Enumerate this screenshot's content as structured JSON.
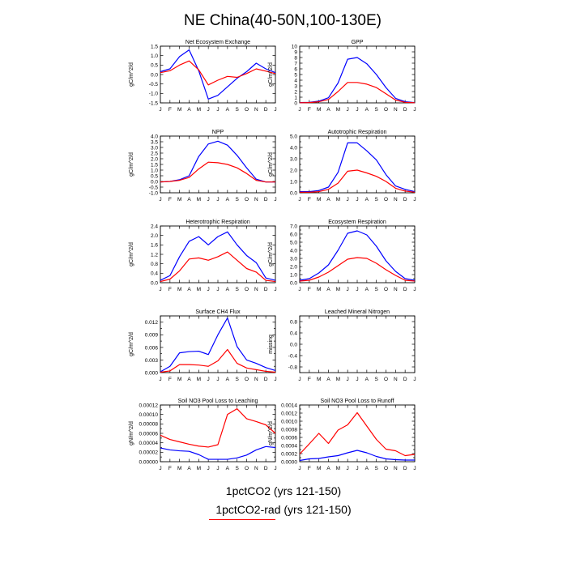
{
  "figure": {
    "title": "NE China(40-50N,100-130E)",
    "legend": [
      {
        "label": "1pctCO2 (yrs 121-150)",
        "color": "#0000ff"
      },
      {
        "label": "1pctCO2-rad (yrs 121-150)",
        "color": "#ff0000"
      }
    ]
  },
  "chart_data": [
    {
      "type": "line",
      "title": "Net Ecosystem Exchange",
      "ylabel": "gC/m^2/d",
      "categories": [
        "J",
        "F",
        "M",
        "A",
        "M",
        "J",
        "J",
        "A",
        "S",
        "O",
        "N",
        "D",
        "J"
      ],
      "ylim": [
        -1.5,
        1.5
      ],
      "yticks": [
        -1.5,
        -1.0,
        -0.5,
        0.0,
        0.5,
        1.0,
        1.5
      ],
      "ytick_labels": [
        "-1.5",
        "-1.0",
        "-0.5",
        "0.0",
        "0.5",
        "1.0",
        "1.5"
      ],
      "series": [
        {
          "color": "#0000ff",
          "values": [
            0.15,
            0.3,
            0.95,
            1.3,
            0.2,
            -1.3,
            -1.1,
            -0.65,
            -0.2,
            0.15,
            0.6,
            0.3,
            0.1
          ]
        },
        {
          "color": "#ff0000",
          "values": [
            0.1,
            0.2,
            0.5,
            0.72,
            0.25,
            -0.55,
            -0.3,
            -0.1,
            -0.15,
            0.05,
            0.3,
            0.18,
            0.05
          ]
        }
      ]
    },
    {
      "type": "line",
      "title": "GPP",
      "ylabel": "gC/m^2/d",
      "categories": [
        "J",
        "F",
        "M",
        "A",
        "M",
        "J",
        "J",
        "A",
        "S",
        "O",
        "N",
        "D",
        "J"
      ],
      "ylim": [
        0,
        10
      ],
      "yticks": [
        0,
        1,
        2,
        3,
        4,
        5,
        6,
        7,
        8,
        9,
        10
      ],
      "ytick_labels": [
        "0",
        "1",
        "2",
        "3",
        "4",
        "5",
        "6",
        "7",
        "8",
        "9",
        "10"
      ],
      "series": [
        {
          "color": "#0000ff",
          "values": [
            0.05,
            0.1,
            0.3,
            0.9,
            3.5,
            7.7,
            8.0,
            6.9,
            5.0,
            2.7,
            0.8,
            0.2,
            0.05
          ]
        },
        {
          "color": "#ff0000",
          "values": [
            0.03,
            0.05,
            0.2,
            0.6,
            2.0,
            3.6,
            3.6,
            3.3,
            2.7,
            1.6,
            0.5,
            0.1,
            0.03
          ]
        }
      ]
    },
    {
      "type": "line",
      "title": "NPP",
      "ylabel": "gC/m^2/d",
      "categories": [
        "J",
        "F",
        "M",
        "A",
        "M",
        "J",
        "J",
        "A",
        "S",
        "O",
        "N",
        "D",
        "J"
      ],
      "ylim": [
        -1.0,
        4.0
      ],
      "yticks": [
        -1.0,
        -0.5,
        0.0,
        0.5,
        1.0,
        1.5,
        2.0,
        2.5,
        3.0,
        3.5,
        4.0
      ],
      "ytick_labels": [
        "-1.0",
        "-0.5",
        "0.0",
        "0.5",
        "1.0",
        "1.5",
        "2.0",
        "2.5",
        "3.0",
        "3.5",
        "4.0"
      ],
      "series": [
        {
          "color": "#0000ff",
          "values": [
            -0.05,
            0.0,
            0.15,
            0.5,
            2.2,
            3.3,
            3.55,
            3.2,
            2.3,
            1.2,
            0.2,
            -0.05,
            -0.05
          ]
        },
        {
          "color": "#ff0000",
          "values": [
            -0.05,
            0.0,
            0.1,
            0.35,
            1.1,
            1.7,
            1.65,
            1.5,
            1.2,
            0.7,
            0.1,
            -0.05,
            -0.05
          ]
        }
      ]
    },
    {
      "type": "line",
      "title": "Autotrophic Respiration",
      "ylabel": "gC/m^2/d",
      "categories": [
        "J",
        "F",
        "M",
        "A",
        "M",
        "J",
        "J",
        "A",
        "S",
        "O",
        "N",
        "D",
        "J"
      ],
      "ylim": [
        0,
        5.0
      ],
      "yticks": [
        0,
        0.5,
        1.0,
        1.5,
        2.0,
        2.5,
        3.0,
        3.5,
        4.0,
        4.5,
        5.0
      ],
      "ytick_labels": [
        "0.0",
        "",
        "1.0",
        "",
        "2.0",
        "",
        "3.0",
        "",
        "4.0",
        "",
        "5.0"
      ],
      "series": [
        {
          "color": "#0000ff",
          "values": [
            0.1,
            0.1,
            0.2,
            0.5,
            1.8,
            4.4,
            4.4,
            3.7,
            2.9,
            1.6,
            0.6,
            0.3,
            0.1
          ]
        },
        {
          "color": "#ff0000",
          "values": [
            0.05,
            0.05,
            0.1,
            0.3,
            0.85,
            1.9,
            2.0,
            1.75,
            1.45,
            1.0,
            0.4,
            0.15,
            0.05
          ]
        }
      ]
    },
    {
      "type": "line",
      "title": "Heterotrophic Respiration",
      "ylabel": "gC/m^2/d",
      "categories": [
        "J",
        "F",
        "M",
        "A",
        "M",
        "J",
        "J",
        "A",
        "S",
        "O",
        "N",
        "D",
        "J"
      ],
      "ylim": [
        0,
        2.4
      ],
      "yticks": [
        0,
        0.4,
        0.8,
        1.2,
        1.6,
        2.0,
        2.4
      ],
      "ytick_labels": [
        "0.0",
        "0.4",
        "0.8",
        "1.2",
        "1.6",
        "2.0",
        "2.4"
      ],
      "series": [
        {
          "color": "#0000ff",
          "values": [
            0.1,
            0.3,
            1.1,
            1.75,
            1.95,
            1.6,
            1.95,
            2.15,
            1.6,
            1.15,
            0.85,
            0.2,
            0.1
          ]
        },
        {
          "color": "#ff0000",
          "values": [
            0.05,
            0.15,
            0.5,
            1.0,
            1.05,
            0.95,
            1.1,
            1.3,
            0.95,
            0.6,
            0.45,
            0.1,
            0.05
          ]
        }
      ]
    },
    {
      "type": "line",
      "title": "Ecosystem Respiration",
      "ylabel": "gC/m^2/d",
      "categories": [
        "J",
        "F",
        "M",
        "A",
        "M",
        "J",
        "J",
        "A",
        "S",
        "O",
        "N",
        "D",
        "J"
      ],
      "ylim": [
        0,
        7.0
      ],
      "yticks": [
        0,
        0.5,
        1.0,
        1.5,
        2.0,
        2.5,
        3.0,
        3.5,
        4.0,
        4.5,
        5.0,
        5.5,
        6.0,
        6.5,
        7.0
      ],
      "ytick_labels": [
        "0.0",
        "",
        "1.0",
        "",
        "2.0",
        "",
        "3.0",
        "",
        "4.0",
        "",
        "5.0",
        "",
        "6.0",
        "",
        "7.0"
      ],
      "series": [
        {
          "color": "#0000ff",
          "values": [
            0.3,
            0.5,
            1.2,
            2.2,
            4.0,
            6.1,
            6.4,
            5.9,
            4.5,
            2.7,
            1.4,
            0.5,
            0.3
          ]
        },
        {
          "color": "#ff0000",
          "values": [
            0.2,
            0.3,
            0.7,
            1.3,
            2.1,
            2.9,
            3.1,
            3.0,
            2.4,
            1.6,
            0.9,
            0.3,
            0.2
          ]
        }
      ]
    },
    {
      "type": "line",
      "title": "Surface CH4 Flux",
      "ylabel": "gC/m^2/d",
      "categories": [
        "J",
        "F",
        "M",
        "A",
        "M",
        "J",
        "J",
        "A",
        "S",
        "O",
        "N",
        "D",
        "J"
      ],
      "ylim": [
        0,
        0.0135
      ],
      "yticks": [
        0,
        0.0015,
        0.003,
        0.0045,
        0.006,
        0.0075,
        0.009,
        0.0105,
        0.012,
        0.0135
      ],
      "ytick_labels": [
        "0.000",
        "",
        "0.003",
        "",
        "0.006",
        "",
        "0.009",
        "",
        "0.012",
        ""
      ],
      "series": [
        {
          "color": "#0000ff",
          "values": [
            0.0002,
            0.0015,
            0.0047,
            0.005,
            0.0051,
            0.0043,
            0.009,
            0.013,
            0.0062,
            0.003,
            0.0022,
            0.0012,
            0.0005
          ]
        },
        {
          "color": "#ff0000",
          "values": [
            0.0001,
            0.0004,
            0.0019,
            0.0019,
            0.0018,
            0.0015,
            0.0028,
            0.0055,
            0.0022,
            0.0011,
            0.0007,
            0.0003,
            0.0001
          ]
        }
      ]
    },
    {
      "type": "line",
      "title": "Leached Mineral Nitrogen",
      "ylabel": "missing",
      "categories": [
        "J",
        "F",
        "M",
        "A",
        "M",
        "J",
        "J",
        "A",
        "S",
        "O",
        "N",
        "D",
        "J"
      ],
      "ylim": [
        -1.0,
        1.0
      ],
      "yticks": [
        -1.0,
        -0.8,
        -0.6,
        -0.4,
        -0.2,
        0.0,
        0.2,
        0.4,
        0.6,
        0.8,
        1.0
      ],
      "ytick_labels": [
        "",
        "-0.8",
        "",
        "-0.4",
        "",
        "0.0",
        "",
        "0.4",
        "",
        "0.8",
        ""
      ],
      "series": []
    },
    {
      "type": "line",
      "title": "Soil NO3 Pool Loss to Leaching",
      "ylabel": "gN/m^2/d",
      "categories": [
        "J",
        "F",
        "M",
        "A",
        "M",
        "J",
        "J",
        "A",
        "S",
        "O",
        "N",
        "D",
        "J"
      ],
      "ylim": [
        0,
        0.00012
      ],
      "yticks": [
        0,
        1e-05,
        2e-05,
        3e-05,
        4e-05,
        5e-05,
        6e-05,
        7e-05,
        8e-05,
        9e-05,
        0.0001,
        0.00011,
        0.00012
      ],
      "ytick_labels": [
        "0.00000",
        "",
        "0.00002",
        "",
        "0.00004",
        "",
        "0.00006",
        "",
        "0.00008",
        "",
        "0.00010",
        "",
        "0.00012"
      ],
      "series": [
        {
          "color": "#0000ff",
          "values": [
            2.9e-05,
            2.5e-05,
            2.3e-05,
            2.2e-05,
            1.5e-05,
            5e-06,
            5e-06,
            5e-06,
            8e-06,
            1.4e-05,
            2.5e-05,
            3.2e-05,
            3e-05
          ]
        },
        {
          "color": "#ff0000",
          "values": [
            5.6e-05,
            4.7e-05,
            4.2e-05,
            3.7e-05,
            3.3e-05,
            3.1e-05,
            3.6e-05,
            0.0001,
            0.000112,
            9.1e-05,
            8.5e-05,
            7.8e-05,
            6e-05
          ]
        }
      ]
    },
    {
      "type": "line",
      "title": "Soil NO3 Pool Loss to Runoff",
      "ylabel": "gN/m^2/d",
      "categories": [
        "J",
        "F",
        "M",
        "A",
        "M",
        "J",
        "J",
        "A",
        "S",
        "O",
        "N",
        "D",
        "J"
      ],
      "ylim": [
        0,
        0.0014
      ],
      "yticks": [
        0,
        0.0001,
        0.0002,
        0.0003,
        0.0004,
        0.0005,
        0.0006,
        0.0007,
        0.0008,
        0.0009,
        0.001,
        0.0011,
        0.0012,
        0.0013,
        0.0014
      ],
      "ytick_labels": [
        "0.0000",
        "",
        "0.0002",
        "",
        "0.0004",
        "",
        "0.0006",
        "",
        "0.0008",
        "",
        "0.0010",
        "",
        "0.0012",
        "",
        "0.0014"
      ],
      "series": [
        {
          "color": "#0000ff",
          "values": [
            3e-05,
            7e-05,
            8e-05,
            0.00012,
            0.00015,
            0.00022,
            0.00028,
            0.00022,
            0.00013,
            7e-05,
            5e-05,
            4e-05,
            4e-05
          ]
        },
        {
          "color": "#ff0000",
          "values": [
            0.00019,
            0.00044,
            0.0007,
            0.00045,
            0.00078,
            0.00091,
            0.00121,
            0.00088,
            0.00055,
            0.00031,
            0.00027,
            0.00015,
            0.00018
          ]
        }
      ]
    }
  ]
}
